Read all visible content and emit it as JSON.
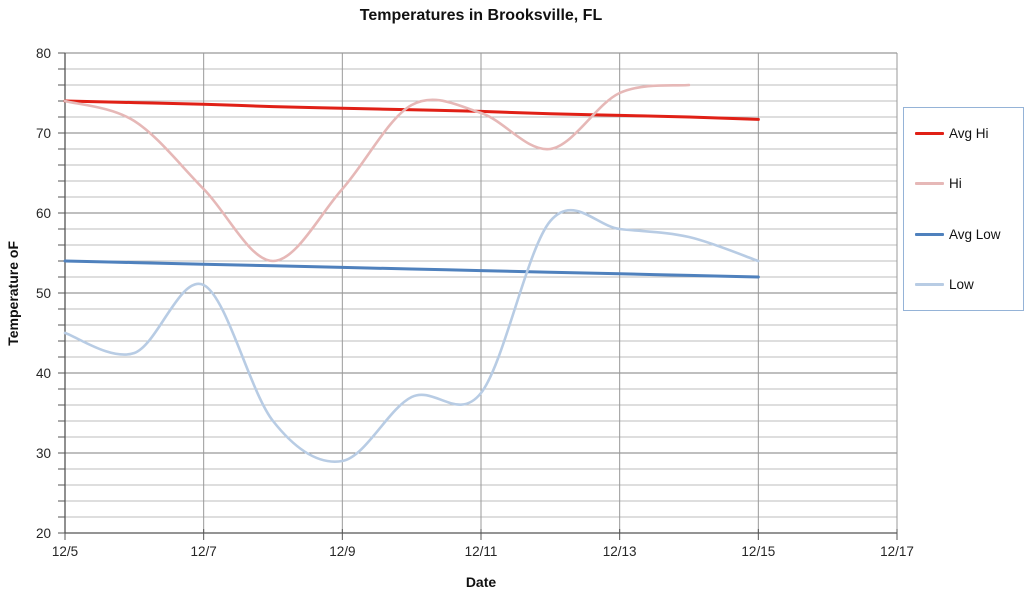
{
  "chart_data": {
    "type": "line",
    "title": "Temperatures in Brooksville, FL",
    "xlabel": "Date",
    "ylabel": "Temperature oF",
    "smooth": true,
    "legend_position": "right",
    "x": [
      "12/5",
      "12/6",
      "12/7",
      "12/8",
      "12/9",
      "12/10",
      "12/11",
      "12/12",
      "12/13",
      "12/14",
      "12/15"
    ],
    "x_tick_labels": [
      "12/5",
      "12/7",
      "12/9",
      "12/11",
      "12/13",
      "12/15",
      "12/17"
    ],
    "x_axis_span_days": 12,
    "ylim": [
      20,
      80
    ],
    "y_ticks": [
      20,
      30,
      40,
      50,
      60,
      70,
      80
    ],
    "y_minor_step": 2,
    "grid": "horizontal minor every 2F, horizontal major every 10F, vertical every 2 days",
    "series": [
      {
        "name": "Avg Hi",
        "color": "#e02016",
        "width": 3,
        "values": [
          74,
          73.8,
          73.6,
          73.3,
          73.1,
          72.9,
          72.7,
          72.4,
          72.2,
          72,
          71.7
        ]
      },
      {
        "name": "Hi",
        "color": "#e6b8b7",
        "width": 2.6,
        "values": [
          74,
          71.5,
          63,
          54,
          63,
          73.5,
          72.5,
          68,
          75,
          76,
          null
        ]
      },
      {
        "name": "Avg Low",
        "color": "#4f81bd",
        "width": 3,
        "values": [
          54,
          53.8,
          53.6,
          53.4,
          53.2,
          53,
          52.8,
          52.6,
          52.4,
          52.2,
          52
        ]
      },
      {
        "name": "Low",
        "color": "#b8cce4",
        "width": 2.6,
        "values": [
          45,
          42.5,
          51,
          34,
          29,
          37,
          37.5,
          59,
          58,
          57,
          54
        ]
      }
    ],
    "colors": {
      "grid_minor": "#bdbdbd",
      "grid_major": "#7f7f7f",
      "grid_vertical": "#9a9a9a",
      "axis": "#555555",
      "tick_text": "#262626",
      "legend_border": "#95b3d7"
    }
  }
}
